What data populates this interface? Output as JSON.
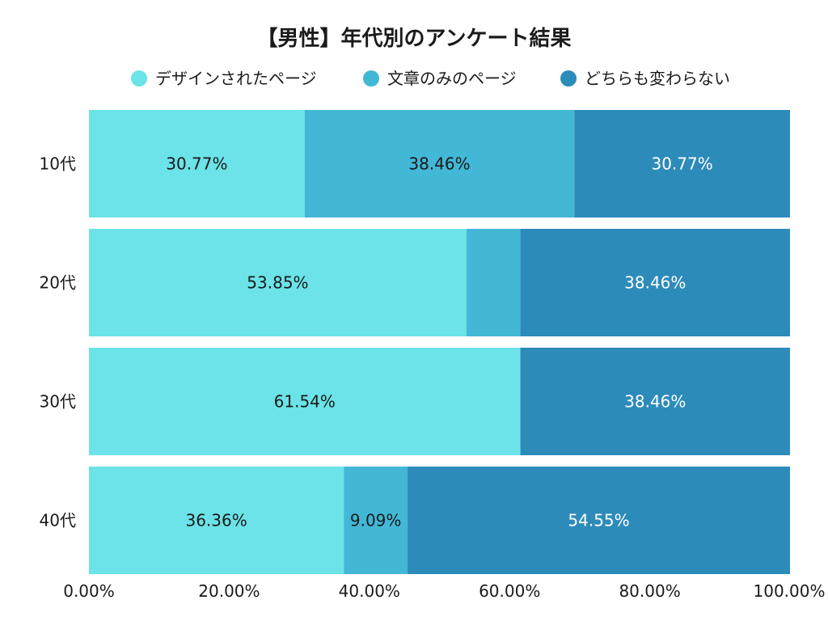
{
  "chart_data": {
    "type": "bar",
    "orientation": "horizontal",
    "stacked": true,
    "title": "【男性】年代別のアンケート結果",
    "categories": [
      "10代",
      "20代",
      "30代",
      "40代"
    ],
    "series": [
      {
        "name": "デザインされたページ",
        "color": "#6be3e8",
        "values": [
          30.77,
          53.85,
          61.54,
          36.36
        ],
        "labels": [
          "30.77%",
          "53.85%",
          "61.54%",
          "36.36%"
        ]
      },
      {
        "name": "文章のみのページ",
        "color": "#42b7d6",
        "values": [
          38.46,
          7.69,
          0,
          9.09
        ],
        "labels": [
          "38.46%",
          "",
          "",
          "9.09%"
        ]
      },
      {
        "name": "どちらも変わらない",
        "color": "#2d8bba",
        "values": [
          30.77,
          38.46,
          38.46,
          54.55
        ],
        "labels": [
          "30.77%",
          "38.46%",
          "38.46%",
          "54.55%"
        ]
      }
    ],
    "xlim": [
      0,
      100
    ],
    "x_ticks": [
      "0.00%",
      "20.00%",
      "40.00%",
      "60.00%",
      "80.00%",
      "100.00%"
    ],
    "legend": "top-center",
    "grid": false
  }
}
